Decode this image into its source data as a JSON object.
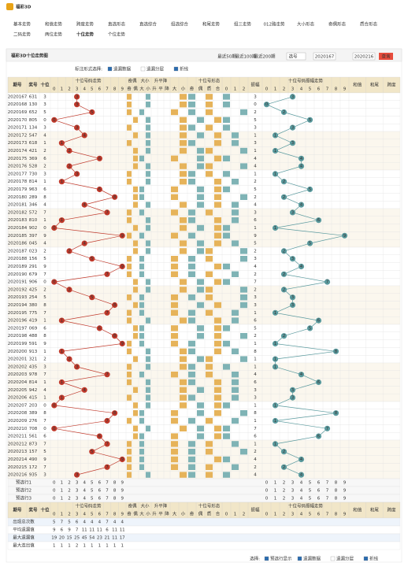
{
  "header": {
    "logo": "福彩3D",
    "nav": [
      "基本走势",
      "和值走势",
      "跨度走势",
      "直选形态",
      "直选综合",
      "组选综合",
      "和尾走势",
      "组三走势",
      "012路走势",
      "大小形态",
      "奇偶形态",
      "质合形态",
      "二码走势",
      "两位走势",
      "十位走势",
      "个位走势"
    ]
  },
  "panel": {
    "title": "福彩3D十位走势图",
    "ranges": [
      "最近50期",
      "最近100期",
      "最近200期"
    ],
    "select": "选号",
    "from": "2020167",
    "to": "2020216",
    "button": "查询",
    "option_label": "标注形式选择:",
    "options": [
      "遗漏数据",
      "遗漏分层",
      "折线"
    ]
  },
  "table": {
    "columns": [
      "期号",
      "奖号",
      "十位"
    ],
    "trend_title": "十位号码走势",
    "digits": [
      0,
      1,
      2,
      3,
      4,
      5,
      6,
      7,
      8,
      9
    ],
    "groups": [
      {
        "title": "奇偶",
        "items": [
          "奇",
          "偶"
        ]
      },
      {
        "title": "大小",
        "items": [
          "大",
          "小"
        ]
      },
      {
        "title": "升平降",
        "items": [
          "升",
          "平",
          "降"
        ]
      }
    ],
    "shape_title": "十位号形态",
    "shapes": [
      "大",
      "小",
      "奇",
      "偶",
      "质",
      "合",
      "0",
      "1",
      "2"
    ],
    "amp_title": "振幅",
    "amp_trend_title": "十位号码振幅走势",
    "tail": [
      "和值",
      "和尾",
      "跨度"
    ],
    "rows": [
      {
        "issue": "2020167",
        "number": "631",
        "tens": 3,
        "amp": 3
      },
      {
        "issue": "2020168",
        "number": "130",
        "tens": 3,
        "amp": 0
      },
      {
        "issue": "2020169",
        "number": "652",
        "tens": 5,
        "amp": 2
      },
      {
        "issue": "2020170",
        "number": "805",
        "tens": 0,
        "amp": 5
      },
      {
        "issue": "2020171",
        "number": "134",
        "tens": 3,
        "amp": 3
      },
      {
        "issue": "2020172",
        "number": "547",
        "tens": 4,
        "amp": 1
      },
      {
        "issue": "2020173",
        "number": "618",
        "tens": 1,
        "amp": 3
      },
      {
        "issue": "2020174",
        "number": "421",
        "tens": 2,
        "amp": 1
      },
      {
        "issue": "2020175",
        "number": "369",
        "tens": 6,
        "amp": 4
      },
      {
        "issue": "2020176",
        "number": "528",
        "tens": 2,
        "amp": 4
      },
      {
        "issue": "2020177",
        "number": "730",
        "tens": 3,
        "amp": 1
      },
      {
        "issue": "2020178",
        "number": "814",
        "tens": 1,
        "amp": 2
      },
      {
        "issue": "2020179",
        "number": "963",
        "tens": 6,
        "amp": 5
      },
      {
        "issue": "2020180",
        "number": "289",
        "tens": 8,
        "amp": 2
      },
      {
        "issue": "2020181",
        "number": "346",
        "tens": 4,
        "amp": 4
      },
      {
        "issue": "2020182",
        "number": "572",
        "tens": 7,
        "amp": 3
      },
      {
        "issue": "2020183",
        "number": "810",
        "tens": 1,
        "amp": 6
      },
      {
        "issue": "2020184",
        "number": "902",
        "tens": 0,
        "amp": 1
      },
      {
        "issue": "2020185",
        "number": "397",
        "tens": 9,
        "amp": 9
      },
      {
        "issue": "2020186",
        "number": "045",
        "tens": 4,
        "amp": 5
      },
      {
        "issue": "2020187",
        "number": "023",
        "tens": 2,
        "amp": 2
      },
      {
        "issue": "2020188",
        "number": "156",
        "tens": 5,
        "amp": 3
      },
      {
        "issue": "2020189",
        "number": "291",
        "tens": 9,
        "amp": 4
      },
      {
        "issue": "2020190",
        "number": "679",
        "tens": 7,
        "amp": 2
      },
      {
        "issue": "2020191",
        "number": "906",
        "tens": 0,
        "amp": 7
      },
      {
        "issue": "2020192",
        "number": "425",
        "tens": 2,
        "amp": 2
      },
      {
        "issue": "2020193",
        "number": "254",
        "tens": 5,
        "amp": 3
      },
      {
        "issue": "2020194",
        "number": "380",
        "tens": 8,
        "amp": 3
      },
      {
        "issue": "2020195",
        "number": "775",
        "tens": 7,
        "amp": 1
      },
      {
        "issue": "2020196",
        "number": "419",
        "tens": 1,
        "amp": 6
      },
      {
        "issue": "2020197",
        "number": "069",
        "tens": 6,
        "amp": 5
      },
      {
        "issue": "2020198",
        "number": "488",
        "tens": 8,
        "amp": 2
      },
      {
        "issue": "2020199",
        "number": "591",
        "tens": 9,
        "amp": 1
      },
      {
        "issue": "2020200",
        "number": "913",
        "tens": 1,
        "amp": 8
      },
      {
        "issue": "2020201",
        "number": "321",
        "tens": 2,
        "amp": 1
      },
      {
        "issue": "2020202",
        "number": "435",
        "tens": 3,
        "amp": 1
      },
      {
        "issue": "2020203",
        "number": "978",
        "tens": 7,
        "amp": 4
      },
      {
        "issue": "2020204",
        "number": "814",
        "tens": 1,
        "amp": 6
      },
      {
        "issue": "2020205",
        "number": "942",
        "tens": 4,
        "amp": 3
      },
      {
        "issue": "2020206",
        "number": "415",
        "tens": 1,
        "amp": 3
      },
      {
        "issue": "2020207",
        "number": "203",
        "tens": 0,
        "amp": 1
      },
      {
        "issue": "2020208",
        "number": "389",
        "tens": 8,
        "amp": 8
      },
      {
        "issue": "2020209",
        "number": "276",
        "tens": 7,
        "amp": 1
      },
      {
        "issue": "2020210",
        "number": "708",
        "tens": 0,
        "amp": 7
      },
      {
        "issue": "2020211",
        "number": "561",
        "tens": 6,
        "amp": 6
      },
      {
        "issue": "2020212",
        "number": "873",
        "tens": 7,
        "amp": 1
      },
      {
        "issue": "2020213",
        "number": "157",
        "tens": 5,
        "amp": 2
      },
      {
        "issue": "2020214",
        "number": "490",
        "tens": 9,
        "amp": 4
      },
      {
        "issue": "2020215",
        "number": "172",
        "tens": 7,
        "amp": 2
      },
      {
        "issue": "2020216",
        "number": "935",
        "tens": 3,
        "amp": 4
      }
    ]
  },
  "preselect": [
    "预选行1",
    "预选行2",
    "预选行3"
  ],
  "stats": [
    {
      "label": "出现总次数",
      "values": [
        5,
        7,
        5,
        6,
        4,
        4,
        4,
        7,
        4,
        4
      ]
    },
    {
      "label": "平均遗漏值",
      "values": [
        9,
        6,
        9,
        7,
        11,
        11,
        11,
        6,
        11,
        11
      ]
    },
    {
      "label": "最大遗漏值",
      "values": [
        19,
        20,
        15,
        25,
        45,
        54,
        23,
        21,
        11,
        17
      ]
    },
    {
      "label": "最大连出值",
      "values": [
        1,
        1,
        1,
        2,
        1,
        1,
        1,
        1,
        1,
        1
      ]
    }
  ],
  "footer": {
    "label": "选择:",
    "options": [
      "预选行显示",
      "遗漏数据",
      "遗漏分层",
      "折线"
    ]
  }
}
